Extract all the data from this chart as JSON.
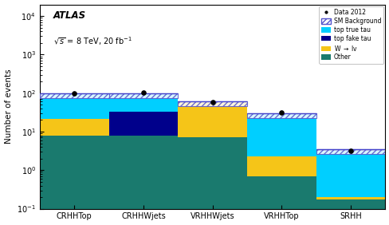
{
  "regions": [
    "CRHHTop",
    "CRHHWjets",
    "VRHHWjets",
    "VRHHTop",
    "SRHH"
  ],
  "other": [
    8.0,
    8.0,
    7.0,
    0.7,
    0.17
  ],
  "W_lv": [
    13.0,
    0.0,
    50.0,
    1.6,
    0.03
  ],
  "top_fake_tau": [
    0.0,
    25.0,
    0.0,
    0.0,
    0.0
  ],
  "top_true_tau": [
    73.0,
    63.0,
    0.0,
    26.0,
    3.0
  ],
  "top_dark_cap": [
    3.5,
    3.5,
    3.0,
    1.0,
    0.28
  ],
  "data_points": [
    97.0,
    103.0,
    57.0,
    32.0,
    3.2
  ],
  "total_bg": [
    97.5,
    99.5,
    60.0,
    29.3,
    3.48
  ],
  "ylim": [
    0.1,
    20000
  ],
  "ylabel": "Number of events",
  "energy_text": "$\\sqrt{s}$ = 8 TeV, 20 fb$^{-1}$",
  "colors": {
    "other": "#1a7a6e",
    "W_lv": "#f5c518",
    "top_fake_tau": "#00008B",
    "top_true_tau": "#00cfff",
    "top_dark_cap": "#00008B"
  }
}
